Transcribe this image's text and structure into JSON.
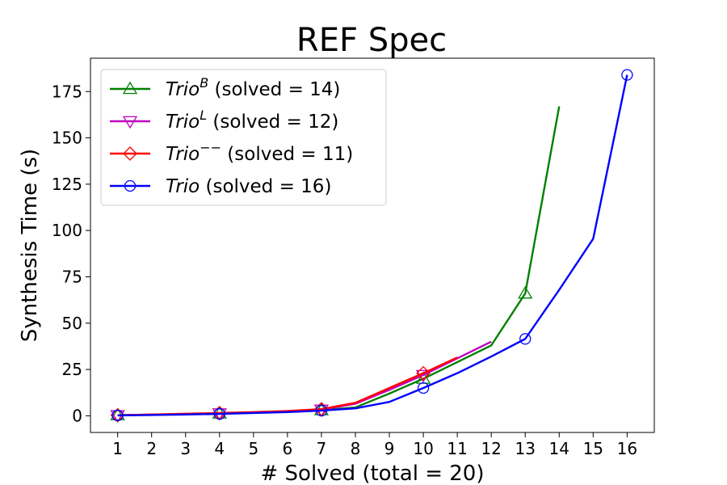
{
  "chart_data": {
    "type": "line",
    "title": "REF Spec",
    "xlabel": "# Solved (total = 20)",
    "ylabel": "Synthesis Time (s)",
    "xlim": [
      0.2,
      16.8
    ],
    "ylim": [
      -9,
      193
    ],
    "x_ticks": [
      1,
      2,
      3,
      4,
      5,
      6,
      7,
      8,
      9,
      10,
      11,
      12,
      13,
      14,
      15,
      16
    ],
    "y_ticks": [
      0,
      25,
      50,
      75,
      100,
      125,
      150,
      175
    ],
    "grid": false,
    "legend_position": "top-left",
    "series": [
      {
        "name": "Trio^B (solved = 14)",
        "legend": {
          "base": "Trio",
          "sup": "B",
          "rest": " (solved = 14)"
        },
        "color": "#008000",
        "marker": "triangle-up",
        "x": [
          1,
          2,
          3,
          4,
          5,
          6,
          7,
          8,
          9,
          10,
          11,
          12,
          13,
          14
        ],
        "y": [
          0.3,
          0.6,
          0.9,
          1.2,
          1.7,
          2.2,
          3.0,
          4.5,
          12.0,
          20.0,
          29.0,
          38.0,
          66.0,
          167.0
        ],
        "marked_x": [
          1,
          4,
          7,
          10,
          13
        ]
      },
      {
        "name": "Trio^L (solved = 12)",
        "legend": {
          "base": "Trio",
          "sup": "L",
          "rest": " (solved = 12)"
        },
        "color": "#bf00bf",
        "marker": "triangle-down",
        "x": [
          1,
          2,
          3,
          4,
          5,
          6,
          7,
          8,
          9,
          10,
          11,
          12
        ],
        "y": [
          0.3,
          0.6,
          1.0,
          1.3,
          1.8,
          2.3,
          3.3,
          6.5,
          14.0,
          22.0,
          31.0,
          40.0
        ],
        "marked_x": [
          1,
          4,
          7,
          10
        ]
      },
      {
        "name": "Trio^-- (solved = 11)",
        "legend": {
          "base": "Trio",
          "sup": "−−",
          "rest": " (solved = 11)"
        },
        "color": "#ff0000",
        "marker": "diamond",
        "x": [
          1,
          2,
          3,
          4,
          5,
          6,
          7,
          8,
          9,
          10,
          11
        ],
        "y": [
          0.3,
          0.7,
          1.1,
          1.5,
          2.0,
          2.6,
          3.6,
          7.0,
          15.0,
          23.0,
          31.5
        ],
        "marked_x": [
          1,
          4,
          7,
          10
        ]
      },
      {
        "name": "Trio (solved = 16)",
        "legend": {
          "base": "Trio",
          "sup": "",
          "rest": " (solved = 16)"
        },
        "color": "#0000ff",
        "marker": "circle",
        "x": [
          1,
          2,
          3,
          4,
          5,
          6,
          7,
          8,
          9,
          10,
          11,
          12,
          13,
          14,
          15,
          16
        ],
        "y": [
          0.2,
          0.4,
          0.7,
          1.0,
          1.5,
          2.0,
          2.8,
          4.0,
          7.5,
          15.0,
          23.0,
          32.0,
          41.5,
          68.0,
          95.5,
          184.0
        ],
        "marked_x": [
          1,
          4,
          7,
          10,
          13,
          16
        ]
      }
    ]
  }
}
